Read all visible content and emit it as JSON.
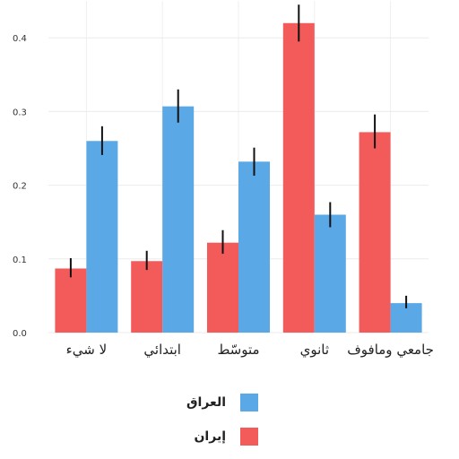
{
  "chart_data": {
    "type": "bar",
    "categories": [
      "لا شيء",
      "ابتدائي",
      "متوسّط",
      "ثانوي",
      "جامعي ومافوف"
    ],
    "series": [
      {
        "name": "إيران",
        "color": "#f35b5b",
        "values": [
          0.087,
          0.097,
          0.122,
          0.42,
          0.272
        ],
        "err_low": [
          0.075,
          0.085,
          0.107,
          0.395,
          0.25
        ],
        "err_high": [
          0.101,
          0.111,
          0.139,
          0.445,
          0.296
        ]
      },
      {
        "name": "العراق",
        "color": "#5ba8e6",
        "values": [
          0.26,
          0.307,
          0.232,
          0.16,
          0.04
        ],
        "err_low": [
          0.241,
          0.285,
          0.213,
          0.143,
          0.033
        ],
        "err_high": [
          0.28,
          0.33,
          0.251,
          0.177,
          0.05
        ]
      }
    ],
    "yticks": [
      "0.0",
      "0.1",
      "0.2",
      "0.3",
      "0.4"
    ],
    "ylim": [
      0,
      0.45
    ],
    "grid": true,
    "legend_position": "bottom",
    "title": "",
    "xlabel": "",
    "ylabel": ""
  }
}
